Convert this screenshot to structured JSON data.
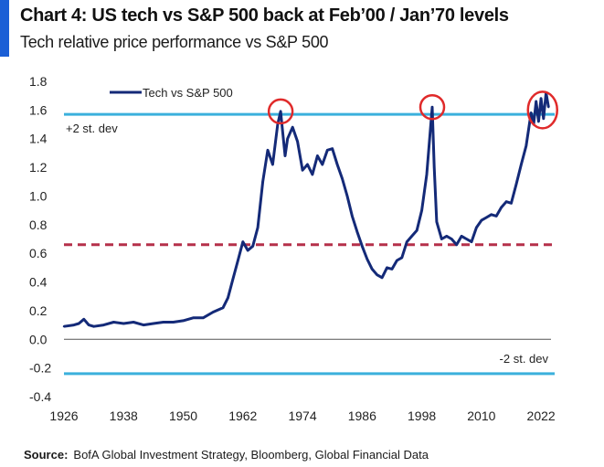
{
  "header": {
    "title": "Chart 4: US tech vs S&P 500 back at Feb’00 / Jan’70 levels",
    "subtitle": "Tech relative price performance vs S&P 500"
  },
  "footer": {
    "source_label": "Source:",
    "source_text": "BofA Global Investment Strategy, Bloomberg, Global Financial Data"
  },
  "colors": {
    "accent": "#1b5fd6",
    "series": "#142a78",
    "band_line": "#3bb0dc",
    "mean_line": "#b5304a",
    "highlight_circle": "#e02a2a"
  },
  "chart_data": {
    "type": "line",
    "title": "Chart 4: US tech vs S&P 500 back at Feb’00 / Jan’70 levels",
    "subtitle": "Tech relative price performance vs S&P 500",
    "xlim": [
      1926,
      2024
    ],
    "ylim": [
      -0.4,
      1.8
    ],
    "x_ticks": [
      "1926",
      "1938",
      "1950",
      "1962",
      "1974",
      "1986",
      "1998",
      "2010",
      "2022"
    ],
    "x_tick_values": [
      1926,
      1938,
      1950,
      1962,
      1974,
      1986,
      1998,
      2010,
      2022
    ],
    "y_ticks": [
      "1.8",
      "1.6",
      "1.4",
      "1.2",
      "1.0",
      "0.8",
      "0.6",
      "0.4",
      "0.2",
      "0.0",
      "-0.2",
      "-0.4"
    ],
    "y_tick_values": [
      1.8,
      1.6,
      1.4,
      1.2,
      1.0,
      0.8,
      0.6,
      0.4,
      0.2,
      0.0,
      -0.2,
      -0.4
    ],
    "grid": false,
    "legend": {
      "position": "top-left",
      "entries": [
        "Tech vs  S&P 500"
      ]
    },
    "series": [
      {
        "name": "Tech vs  S&P 500",
        "x": [
          1926,
          1928,
          1929,
          1930,
          1931,
          1932,
          1934,
          1936,
          1938,
          1940,
          1942,
          1944,
          1946,
          1948,
          1950,
          1952,
          1954,
          1956,
          1958,
          1959,
          1960,
          1961,
          1962,
          1963,
          1964,
          1965,
          1966,
          1967,
          1968,
          1969,
          1969.6,
          1970,
          1970.5,
          1971,
          1972,
          1973,
          1974,
          1975,
          1976,
          1977,
          1978,
          1979,
          1980,
          1981,
          1982,
          1983,
          1984,
          1985,
          1986,
          1987,
          1988,
          1989,
          1990,
          1991,
          1992,
          1993,
          1994,
          1995,
          1996,
          1997,
          1998,
          1999,
          2000.1,
          2000.5,
          2001,
          2002,
          2003,
          2004,
          2005,
          2006,
          2007,
          2008,
          2009,
          2010,
          2011,
          2012,
          2013,
          2014,
          2015,
          2016,
          2017,
          2018,
          2019,
          2020,
          2020.5,
          2021,
          2021.5,
          2022,
          2022.5,
          2023,
          2023.5
        ],
        "values": [
          0.09,
          0.1,
          0.11,
          0.14,
          0.1,
          0.09,
          0.1,
          0.12,
          0.11,
          0.12,
          0.1,
          0.11,
          0.12,
          0.12,
          0.13,
          0.15,
          0.15,
          0.19,
          0.22,
          0.29,
          0.42,
          0.55,
          0.68,
          0.62,
          0.65,
          0.78,
          1.1,
          1.32,
          1.22,
          1.5,
          1.59,
          1.45,
          1.28,
          1.4,
          1.48,
          1.38,
          1.18,
          1.22,
          1.15,
          1.28,
          1.22,
          1.32,
          1.33,
          1.22,
          1.12,
          1.0,
          0.86,
          0.75,
          0.65,
          0.56,
          0.49,
          0.45,
          0.43,
          0.5,
          0.49,
          0.55,
          0.57,
          0.68,
          0.72,
          0.76,
          0.9,
          1.15,
          1.62,
          1.2,
          0.82,
          0.7,
          0.72,
          0.7,
          0.66,
          0.72,
          0.7,
          0.68,
          0.78,
          0.83,
          0.85,
          0.87,
          0.86,
          0.92,
          0.96,
          0.95,
          1.08,
          1.22,
          1.35,
          1.58,
          1.5,
          1.66,
          1.52,
          1.68,
          1.54,
          1.72,
          1.62
        ]
      }
    ],
    "reference_lines": [
      {
        "label": "+2 st. dev",
        "value": 1.57,
        "style": "solid"
      },
      {
        "label": "",
        "value": 0.66,
        "style": "dashed"
      },
      {
        "label": "-2 st. dev",
        "value": -0.24,
        "style": "solid"
      }
    ],
    "annotations": [
      {
        "type": "circle",
        "x": 1969.6,
        "y": 1.59
      },
      {
        "type": "circle",
        "x": 2000.1,
        "y": 1.62
      },
      {
        "type": "circle",
        "x": 2022.3,
        "y": 1.6
      }
    ]
  }
}
